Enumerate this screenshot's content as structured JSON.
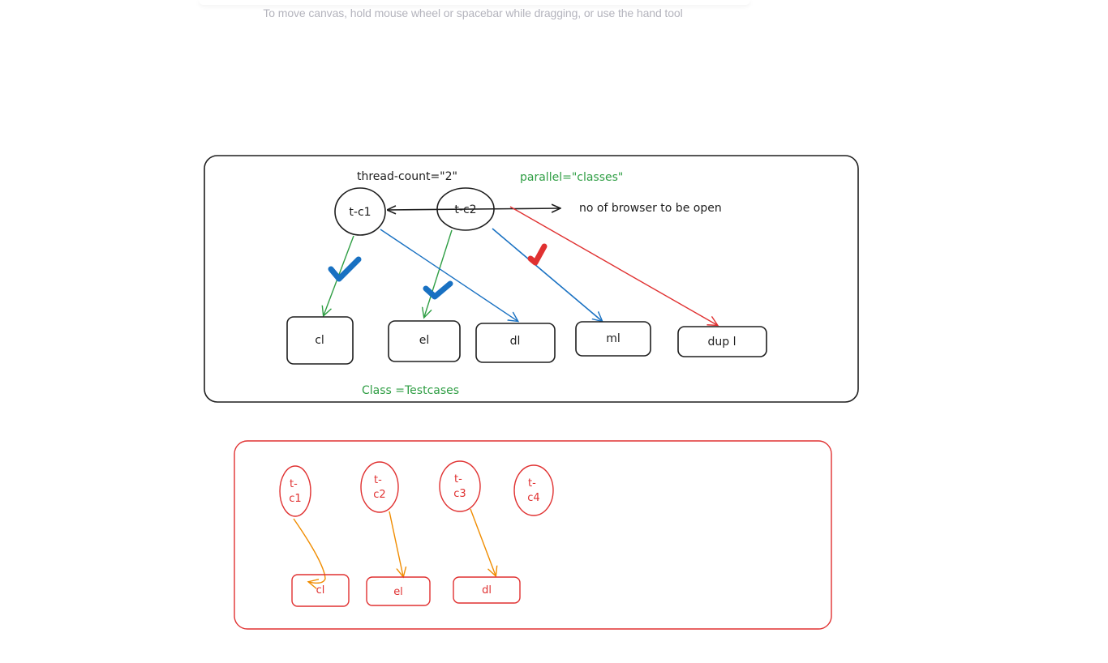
{
  "canvas_hint": "To move canvas, hold mouse wheel or spacebar while dragging, or use the hand tool",
  "colors": {
    "black": "#1e1e1e",
    "green": "#2f9e44",
    "blue": "#1971c2",
    "red": "#e03131",
    "orange": "#f08c00"
  },
  "diagram1": {
    "thread_count_label": "thread-count=\"2\"",
    "parallel_label": "parallel=\"classes\"",
    "threads": [
      "t-c1",
      "t-c2"
    ],
    "browser_note": "no of browser to be open",
    "boxes": [
      "cl",
      "el",
      "dl",
      "ml",
      "dup l"
    ],
    "class_label": "Class =Testcases"
  },
  "diagram2": {
    "threads": [
      "t-\nc1",
      "t-\nc2",
      "t-\nc3",
      "t-\nc4"
    ],
    "boxes": [
      "cl",
      "el",
      "dl"
    ]
  }
}
